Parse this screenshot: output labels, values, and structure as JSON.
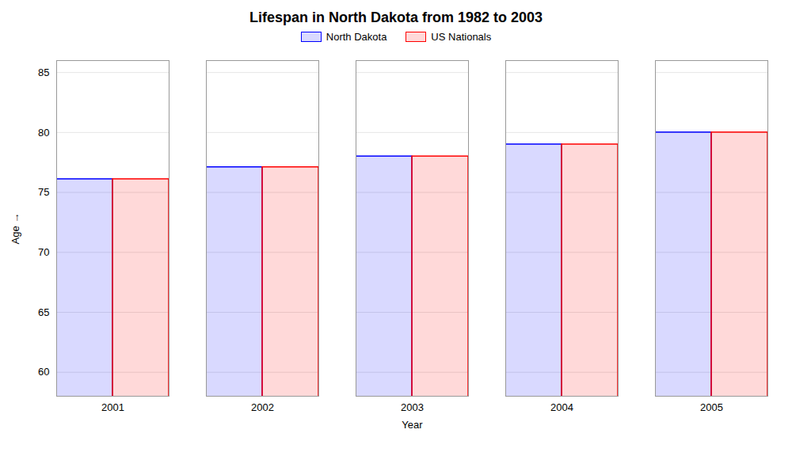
{
  "chart_data": {
    "type": "bar",
    "title": "Lifespan in North Dakota from 1982 to 2003",
    "x_label": "Year",
    "y_label": "Age",
    "categories": [
      "2001",
      "2002",
      "2003",
      "2004",
      "2005"
    ],
    "series": [
      {
        "name": "North Dakota",
        "color": "#0000ff",
        "values": [
          76.1,
          77.1,
          78.0,
          79.0,
          80.0
        ]
      },
      {
        "name": "US Nationals",
        "color": "#ff0000",
        "values": [
          76.1,
          77.1,
          78.0,
          79.0,
          80.0
        ]
      }
    ],
    "ylim": [
      58,
      86
    ],
    "yticks": [
      60,
      65,
      70,
      75,
      80,
      85
    ],
    "grid": true,
    "legend": "top"
  }
}
